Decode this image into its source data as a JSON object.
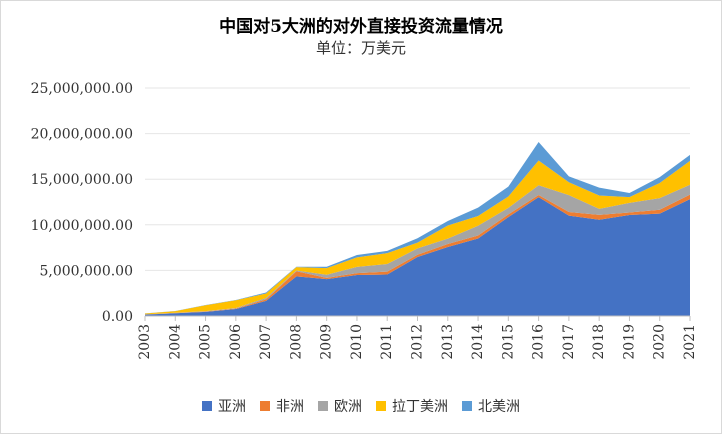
{
  "chart_data": {
    "type": "area",
    "stacked": true,
    "title": "中国对5大洲的对外直接投资流量情况",
    "subtitle": "单位：万美元",
    "xlabel": "",
    "ylabel": "",
    "ylim": [
      0,
      25000000
    ],
    "yticks": [
      0,
      5000000,
      10000000,
      15000000,
      20000000,
      25000000
    ],
    "ytick_labels": [
      "0.00",
      "5,000,000.00",
      "10,000,000.00",
      "15,000,000.00",
      "20,000,000.00",
      "25,000,000.00"
    ],
    "categories": [
      "2003",
      "2004",
      "2005",
      "2006",
      "2007",
      "2008",
      "2009",
      "2010",
      "2011",
      "2012",
      "2013",
      "2014",
      "2015",
      "2016",
      "2017",
      "2018",
      "2019",
      "2020",
      "2021"
    ],
    "series": [
      {
        "name": "亚洲",
        "color": "#4472C4",
        "values": [
          150000,
          300000,
          450000,
          770000,
          1660000,
          4350000,
          4040000,
          4490000,
          4550000,
          6470000,
          7560000,
          8500000,
          10840000,
          13030000,
          11000000,
          10550000,
          11080000,
          11230000,
          12810000
        ]
      },
      {
        "name": "非洲",
        "color": "#ED7D31",
        "values": [
          10000,
          30000,
          40000,
          50000,
          160000,
          550000,
          140000,
          210000,
          320000,
          250000,
          340000,
          320000,
          300000,
          240000,
          410000,
          540000,
          270000,
          420000,
          500000
        ]
      },
      {
        "name": "欧洲",
        "color": "#A5A5A5",
        "values": [
          20000,
          20000,
          40000,
          60000,
          150000,
          90000,
          340000,
          680000,
          830000,
          700000,
          590000,
          1080000,
          710000,
          1060000,
          1850000,
          660000,
          1050000,
          1270000,
          1080000
        ]
      },
      {
        "name": "拉丁美洲",
        "color": "#FFC000",
        "values": [
          100000,
          180000,
          650000,
          850000,
          490000,
          370000,
          730000,
          1050000,
          1190000,
          620000,
          1430000,
          1060000,
          1260000,
          2720000,
          1400000,
          1460000,
          640000,
          1670000,
          2620000
        ]
      },
      {
        "name": "北美洲",
        "color": "#5B9BD5",
        "values": [
          10000,
          20000,
          30000,
          30000,
          110000,
          40000,
          150000,
          260000,
          250000,
          490000,
          490000,
          920000,
          1070000,
          2030000,
          650000,
          870000,
          440000,
          640000,
          660000
        ]
      }
    ]
  }
}
